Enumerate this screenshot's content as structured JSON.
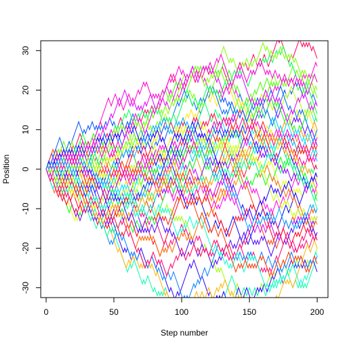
{
  "chart_data": {
    "type": "line",
    "title": "",
    "xlabel": "Step number",
    "ylabel": "Position",
    "xlim": [
      -4,
      208
    ],
    "ylim": [
      -32.5,
      32.5
    ],
    "xticks": [
      0,
      50,
      100,
      150,
      200
    ],
    "yticks": [
      -30,
      -20,
      -10,
      0,
      10,
      20,
      30
    ],
    "grid": false,
    "legend": "none",
    "n_steps": 200,
    "start": 0,
    "step_size": 1,
    "walk_count": 50,
    "palette": [
      "#FF0000",
      "#FF3D00",
      "#FF7A00",
      "#FFB800",
      "#F5FF00",
      "#B8FF00",
      "#7AFF00",
      "#3DFF00",
      "#00FF00",
      "#00FF3D",
      "#00FF7A",
      "#00FFB8",
      "#00FFF5",
      "#00B8FF",
      "#007AFF",
      "#003DFF",
      "#0000FF",
      "#3D00FF",
      "#7A00FF",
      "#B800FF",
      "#F500FF",
      "#FF00B8",
      "#FF007A",
      "#FF003D"
    ],
    "series": [
      {
        "color": "#FF0059",
        "final": 28,
        "max": 30,
        "min": -2
      },
      {
        "color": "#3DFF00",
        "final": 21,
        "max": 23,
        "min": -1
      },
      {
        "color": "#FF00CC",
        "final": 25,
        "max": 26,
        "min": 0
      },
      {
        "color": "#0050FF",
        "final": 16,
        "max": 19,
        "min": -3
      },
      {
        "color": "#00FFD5",
        "final": 12,
        "max": 15,
        "min": -4
      },
      {
        "color": "#FF8C00",
        "final": 9,
        "max": 13,
        "min": -5
      },
      {
        "color": "#B3FF00",
        "final": 14,
        "max": 17,
        "min": -3
      },
      {
        "color": "#6600FF",
        "final": 6,
        "max": 10,
        "min": -6
      },
      {
        "color": "#FF0033",
        "final": 3,
        "max": 8,
        "min": -7
      },
      {
        "color": "#00FF66",
        "final": -1,
        "max": 8,
        "min": -9
      },
      {
        "color": "#00BFFF",
        "final": 4,
        "max": 9,
        "min": -8
      },
      {
        "color": "#E6FF00",
        "final": -3,
        "max": 10,
        "min": -11
      },
      {
        "color": "#FF00FF",
        "final": 1,
        "max": 7,
        "min": -10
      },
      {
        "color": "#00FF00",
        "final": -6,
        "max": 6,
        "min": -12
      },
      {
        "color": "#FF4000",
        "final": -9,
        "max": 5,
        "min": -14
      },
      {
        "color": "#0000FF",
        "final": -13,
        "max": 4,
        "min": -18
      },
      {
        "color": "#FF0080",
        "final": -16,
        "max": 3,
        "min": -21
      },
      {
        "color": "#99FF00",
        "final": -19,
        "max": 2,
        "min": -27
      },
      {
        "color": "#00FFAA",
        "final": -24,
        "max": 1,
        "min": -32
      },
      {
        "color": "#3300FF",
        "final": -26,
        "max": 2,
        "min": -29
      },
      {
        "color": "#FFB300",
        "final": -20,
        "max": 3,
        "min": -24
      },
      {
        "color": "#CC00FF",
        "final": -11,
        "max": 6,
        "min": -17
      },
      {
        "color": "#00FF33",
        "final": -8,
        "max": 7,
        "min": -15
      },
      {
        "color": "#FF001A",
        "final": -18,
        "max": 4,
        "min": -20
      },
      {
        "color": "#0080FF",
        "final": -22,
        "max": 2,
        "min": -25
      },
      {
        "color": "#FFE600",
        "final": 7,
        "max": 14,
        "min": -4
      },
      {
        "color": "#FF00E6",
        "final": -4,
        "max": 10,
        "min": -9
      },
      {
        "color": "#1AFF00",
        "final": 11,
        "max": 16,
        "min": -2
      },
      {
        "color": "#FF6600",
        "final": -14,
        "max": 5,
        "min": -19
      },
      {
        "color": "#00E6FF",
        "final": 2,
        "max": 9,
        "min": -6
      },
      {
        "color": "#8000FF",
        "final": -5,
        "max": 8,
        "min": -12
      },
      {
        "color": "#FF0040",
        "final": 0,
        "max": 12,
        "min": -8
      },
      {
        "color": "#66FF00",
        "final": 18,
        "max": 22,
        "min": -1
      },
      {
        "color": "#0033FF",
        "final": -2,
        "max": 11,
        "min": -10
      },
      {
        "color": "#FF1A00",
        "final": 5,
        "max": 15,
        "min": -5
      },
      {
        "color": "#00FF99",
        "final": -10,
        "max": 6,
        "min": -16
      },
      {
        "color": "#FF00A6",
        "final": 8,
        "max": 13,
        "min": -6
      },
      {
        "color": "#CCFF00",
        "final": -12,
        "max": 7,
        "min": -17
      },
      {
        "color": "#0066FF",
        "final": 10,
        "max": 14,
        "min": -3
      },
      {
        "color": "#FF9900",
        "final": -7,
        "max": 9,
        "min": -13
      },
      {
        "color": "#4D00FF",
        "final": -15,
        "max": 3,
        "min": -22
      },
      {
        "color": "#00FF4D",
        "final": 13,
        "max": 18,
        "min": -2
      },
      {
        "color": "#FF0066",
        "final": -17,
        "max": 5,
        "min": -23
      },
      {
        "color": "#00FFCC",
        "final": -21,
        "max": 3,
        "min": -25
      },
      {
        "color": "#E600FF",
        "final": 15,
        "max": 20,
        "min": -2
      },
      {
        "color": "#FF3300",
        "final": -23,
        "max": 2,
        "min": -26
      },
      {
        "color": "#80FF00",
        "final": 19,
        "max": 25,
        "min": -1
      },
      {
        "color": "#1A00FF",
        "final": -1,
        "max": 12,
        "min": -9
      },
      {
        "color": "#FF00D9",
        "final": 22,
        "max": 27,
        "min": 0
      },
      {
        "color": "#00A6FF",
        "final": -9,
        "max": 8,
        "min": -14
      }
    ]
  }
}
